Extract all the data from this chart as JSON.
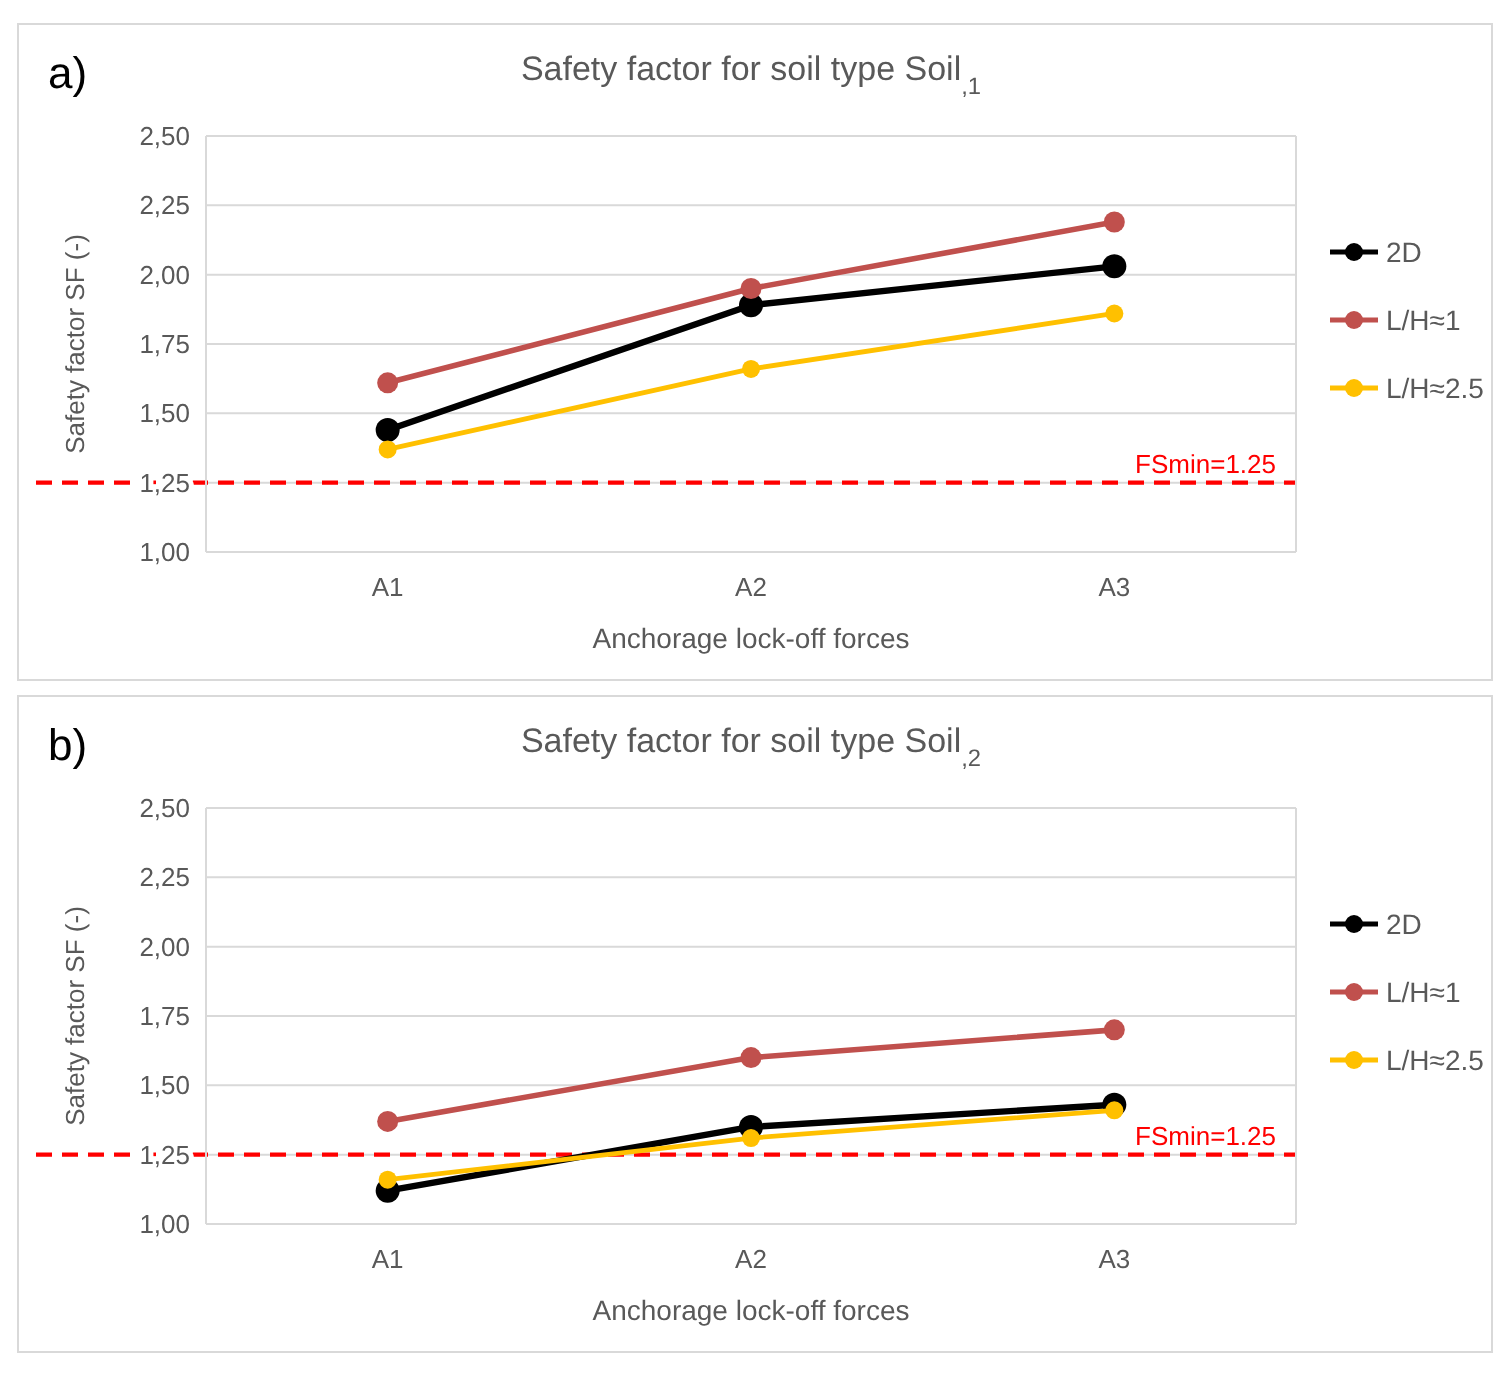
{
  "chart_data": [
    {
      "type": "line",
      "title": "Safety factor for soil type Soil$_{,1}$",
      "xlabel": "Anchorage lock-off forces",
      "ylabel": "Safety factor SF (-)",
      "annotations": [
        "a)"
      ],
      "categories": [
        "A1",
        "A2",
        "A3"
      ],
      "series": [
        {
          "name": "2D",
          "color": "#000000",
          "values": [
            1.44,
            1.89,
            2.03
          ]
        },
        {
          "name": "L/H≈1",
          "color": "#c0504d",
          "values": [
            1.61,
            1.95,
            2.19
          ]
        },
        {
          "name": "L/H≈2.5",
          "color": "#ffc000",
          "values": [
            1.37,
            1.66,
            1.86
          ]
        }
      ],
      "ylim": [
        1,
        2.5
      ],
      "yticks": [
        {
          "value": 1,
          "label": "1,00"
        },
        {
          "value": 1.25,
          "label": "1,25"
        },
        {
          "value": 1.5,
          "label": "1,50"
        },
        {
          "value": 1.75,
          "label": "1,75"
        },
        {
          "value": 2,
          "label": "2,00"
        },
        {
          "value": 2.25,
          "label": "2,25"
        },
        {
          "value": 2.5,
          "label": "2,50"
        }
      ],
      "ref_lines": [
        {
          "axis": "y",
          "value": 1.25,
          "label": "FSmin=1.25",
          "color": "#ff0000",
          "line_style": "dashed"
        }
      ],
      "grid": "y",
      "legend": "right",
      "marker": "circle",
      "line_style": "solid"
    },
    {
      "type": "line",
      "title": "Safety factor for soil type Soil$_{,2}$",
      "xlabel": "Anchorage lock-off forces",
      "ylabel": "Safety factor SF (-)",
      "annotations": [
        "b)"
      ],
      "categories": [
        "A1",
        "A2",
        "A3"
      ],
      "series": [
        {
          "name": "2D",
          "color": "#000000",
          "values": [
            1.12,
            1.35,
            1.43
          ]
        },
        {
          "name": "L/H≈1",
          "color": "#c0504d",
          "values": [
            1.37,
            1.6,
            1.7
          ]
        },
        {
          "name": "L/H≈2.5",
          "color": "#ffc000",
          "values": [
            1.16,
            1.31,
            1.41
          ]
        }
      ],
      "ylim": [
        1,
        2.5
      ],
      "yticks": [
        {
          "value": 1,
          "label": "1,00"
        },
        {
          "value": 1.25,
          "label": "1,25"
        },
        {
          "value": 1.5,
          "label": "1,50"
        },
        {
          "value": 1.75,
          "label": "1,75"
        },
        {
          "value": 2,
          "label": "2,00"
        },
        {
          "value": 2.25,
          "label": "2,25"
        },
        {
          "value": 2.5,
          "label": "2,50"
        }
      ],
      "ref_lines": [
        {
          "axis": "y",
          "value": 1.25,
          "label": "FSmin=1.25",
          "color": "#ff0000",
          "line_style": "dashed"
        }
      ],
      "grid": "y",
      "legend": "right",
      "marker": "circle",
      "line_style": "solid"
    }
  ]
}
